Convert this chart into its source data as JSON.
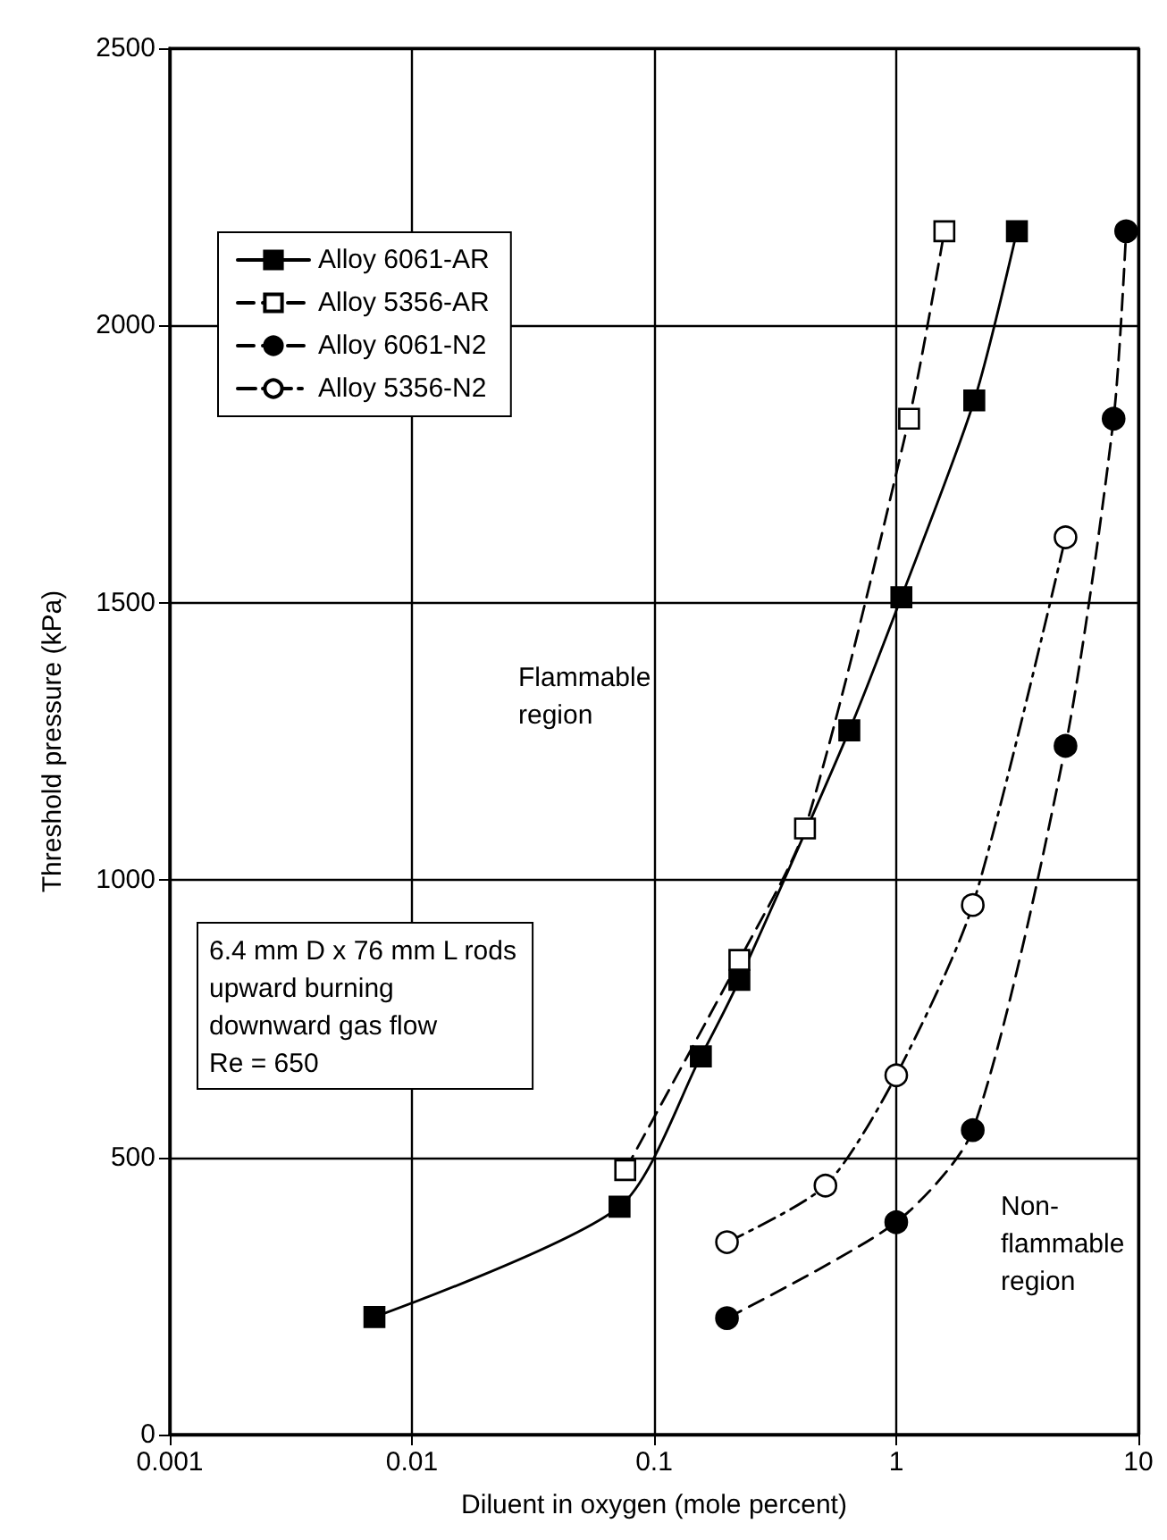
{
  "chart_data": {
    "type": "line",
    "xlabel": "Diluent in oxygen (mole percent)",
    "ylabel": "Threshold pressure (kPa)",
    "log": "x",
    "xlim": [
      0.001,
      10
    ],
    "xticks": [
      0.001,
      0.01,
      0.1,
      1,
      10
    ],
    "ylim": [
      0,
      2500
    ],
    "yticks": [
      0,
      500,
      1000,
      1500,
      2000,
      2500
    ],
    "grid": true,
    "legend": "top left",
    "series": [
      {
        "name": "Alloy 6061-AR",
        "color": "#000000",
        "marker": "square",
        "line_style": "solid",
        "x": [
          0.007,
          0.072,
          0.156,
          0.225,
          0.64,
          1.05,
          2.1,
          3.15
        ],
        "values": [
          212,
          411,
          682,
          820,
          1270,
          1510,
          1865,
          2170
        ]
      },
      {
        "name": "Alloy 5356-AR",
        "color": "#000000",
        "marker": "square",
        "line_style": "dashed",
        "x": [
          0.076,
          0.225,
          0.42,
          1.13,
          1.58
        ],
        "values": [
          477,
          856,
          1093,
          1832,
          2170
        ]
      },
      {
        "name": "Alloy 6061-N2",
        "color": "#000000",
        "marker": "circle",
        "line_style": "dashed",
        "x": [
          0.2,
          1.0,
          2.07,
          5.0,
          7.9,
          8.9
        ],
        "values": [
          210,
          383,
          549,
          1242,
          1832,
          2170
        ]
      },
      {
        "name": "Alloy 5356-N2",
        "color": "#000000",
        "marker": "circle",
        "line_style": "dashdot",
        "x": [
          0.2,
          0.51,
          1.0,
          2.07,
          5.0
        ],
        "values": [
          347,
          449,
          648,
          955,
          1618
        ]
      }
    ],
    "annotations": [
      "Flammable\nregion",
      "6.4 mm D x 76 mm L rods\nupward burning\ndownward gas flow\nRe = 650",
      "Non-\nflammable\nregion"
    ]
  }
}
